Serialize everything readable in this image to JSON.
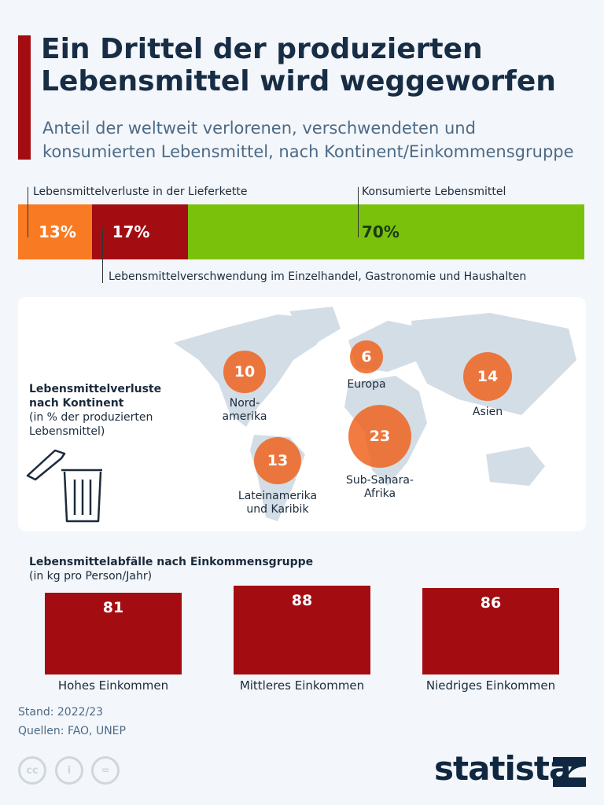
{
  "title": "Ein Drittel der produzierten Lebensmittel wird weggeworfen",
  "subtitle": "Anteil der weltweit verlorenen, verschwendeten und konsumierten Lebensmittel, nach Kontinent/Einkommensgruppe",
  "chart_data": [
    {
      "type": "bar",
      "orientation": "stacked-horizontal",
      "categories": [
        "Lebensmittelverluste in der Lieferkette",
        "Lebensmittelverschwendung im Einzelhandel, Gastronomie und Haushalten",
        "Konsumierte Lebensmittel"
      ],
      "values": [
        13,
        17,
        70
      ],
      "value_labels": [
        "13%",
        "17%",
        "70%"
      ],
      "colors": [
        "#f87a23",
        "#a30d11",
        "#7ac10b"
      ]
    },
    {
      "type": "bubble-map",
      "title": "Lebensmittelverluste nach Kontinent",
      "subtitle": "(in % der produzierten Lebensmittel)",
      "categories": [
        "Nord-amerika",
        "Europa",
        "Asien",
        "Sub-Sahara-Afrika",
        "Lateinamerika und Karibik"
      ],
      "values": [
        10,
        6,
        14,
        23,
        13
      ],
      "color": "#ee641e"
    },
    {
      "type": "bar",
      "title": "Lebensmittelabfälle nach Einkommensgruppe",
      "subtitle": "(in kg pro Person/Jahr)",
      "categories": [
        "Hohes Einkommen",
        "Mittleres Einkommen",
        "Niedriges Einkommen"
      ],
      "values": [
        81,
        88,
        86
      ],
      "color": "#a30d11"
    }
  ],
  "footer": {
    "stand": "Stand: 2022/23",
    "sources": "Quellen: FAO, UNEP",
    "cc": [
      "cc",
      "by",
      "nd"
    ],
    "brand": "statista"
  }
}
